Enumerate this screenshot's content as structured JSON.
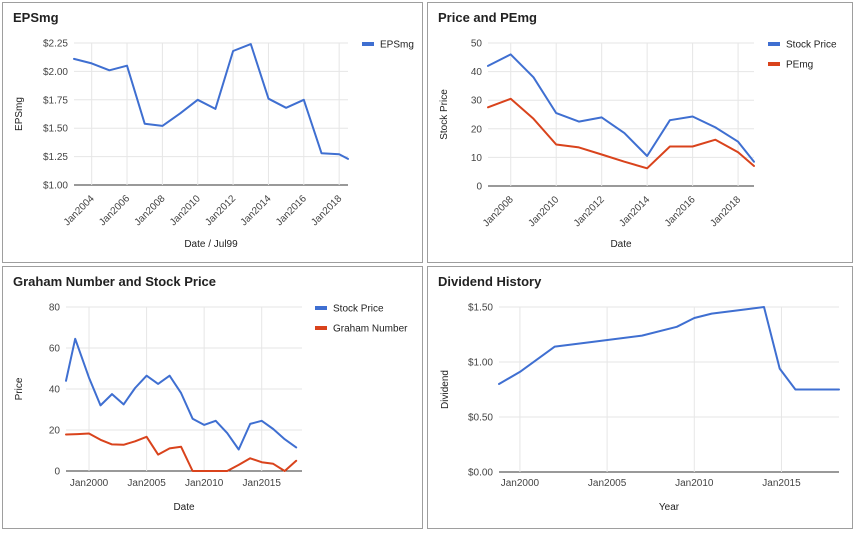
{
  "chart_data": [
    {
      "type": "line",
      "title": "EPSmg",
      "xlabel": "Date / Jul99",
      "ylabel": "EPSmg",
      "x_ticks": [
        "Jan2004",
        "Jan2006",
        "Jan2008",
        "Jan2010",
        "Jan2012",
        "Jan2014",
        "Jan2016",
        "Jan2018"
      ],
      "y_ticks": [
        "$1.00",
        "$1.25",
        "$1.50",
        "$1.75",
        "$2.00",
        "$2.25"
      ],
      "ylim": [
        1.0,
        2.25
      ],
      "xlim": [
        2003,
        2018.5
      ],
      "legend_position": "right",
      "series": [
        {
          "name": "EPSmg",
          "color": "#3f6fd1",
          "points": [
            [
              2003,
              2.11
            ],
            [
              2004,
              2.07
            ],
            [
              2005,
              2.01
            ],
            [
              2006,
              2.05
            ],
            [
              2007,
              1.54
            ],
            [
              2008,
              1.52
            ],
            [
              2009,
              1.63
            ],
            [
              2010,
              1.75
            ],
            [
              2011,
              1.67
            ],
            [
              2012,
              2.18
            ],
            [
              2013,
              2.24
            ],
            [
              2014,
              1.76
            ],
            [
              2015,
              1.68
            ],
            [
              2016,
              1.75
            ],
            [
              2017,
              1.28
            ],
            [
              2018,
              1.27
            ],
            [
              2018.5,
              1.23
            ]
          ]
        }
      ]
    },
    {
      "type": "line",
      "title": "Price and PEmg",
      "xlabel": "Date",
      "ylabel": "Stock Price",
      "x_ticks": [
        "Jan2008",
        "Jan2010",
        "Jan2012",
        "Jan2014",
        "Jan2016",
        "Jan2018"
      ],
      "y_ticks": [
        "0",
        "10",
        "20",
        "30",
        "40",
        "50"
      ],
      "ylim": [
        0,
        50
      ],
      "xlim": [
        2007,
        2018.7
      ],
      "legend_position": "right",
      "series": [
        {
          "name": "Stock Price",
          "color": "#3f6fd1",
          "points": [
            [
              2007,
              42
            ],
            [
              2008,
              46
            ],
            [
              2009,
              38
            ],
            [
              2010,
              25.5
            ],
            [
              2011,
              22.5
            ],
            [
              2012,
              24
            ],
            [
              2013,
              18.5
            ],
            [
              2014,
              10.5
            ],
            [
              2015,
              23
            ],
            [
              2016,
              24.3
            ],
            [
              2017,
              20.5
            ],
            [
              2018,
              15.5
            ],
            [
              2018.7,
              8.5
            ]
          ]
        },
        {
          "name": "PEmg",
          "color": "#d9431c",
          "points": [
            [
              2007,
              27.5
            ],
            [
              2008,
              30.5
            ],
            [
              2009,
              23.5
            ],
            [
              2010,
              14.5
            ],
            [
              2011,
              13.5
            ],
            [
              2012,
              11
            ],
            [
              2013,
              8.5
            ],
            [
              2014,
              6.2
            ],
            [
              2015,
              13.8
            ],
            [
              2016,
              13.8
            ],
            [
              2017,
              16.2
            ],
            [
              2018,
              11.8
            ],
            [
              2018.7,
              7
            ]
          ]
        }
      ]
    },
    {
      "type": "line",
      "title": "Graham Number and Stock Price",
      "xlabel": "Date",
      "ylabel": "Price",
      "x_ticks": [
        "Jan2000",
        "Jan2005",
        "Jan2010",
        "Jan2015"
      ],
      "y_ticks": [
        "0",
        "20",
        "40",
        "60",
        "80"
      ],
      "ylim": [
        0,
        80
      ],
      "xlim": [
        1998,
        2018.5
      ],
      "legend_position": "right",
      "series": [
        {
          "name": "Stock Price",
          "color": "#3f6fd1",
          "points": [
            [
              1998,
              44
            ],
            [
              1998.8,
              64.5
            ],
            [
              2000,
              45.5
            ],
            [
              2001,
              32
            ],
            [
              2002,
              37.5
            ],
            [
              2003,
              32.5
            ],
            [
              2004,
              40.5
            ],
            [
              2005,
              46.5
            ],
            [
              2006,
              42.5
            ],
            [
              2007,
              46.5
            ],
            [
              2008,
              38
            ],
            [
              2009,
              25.5
            ],
            [
              2010,
              22.5
            ],
            [
              2011,
              24.5
            ],
            [
              2012,
              18.5
            ],
            [
              2013,
              10.5
            ],
            [
              2014,
              23
            ],
            [
              2015,
              24.5
            ],
            [
              2016,
              20.5
            ],
            [
              2017,
              15.5
            ],
            [
              2018,
              11.5
            ]
          ]
        },
        {
          "name": "Graham Number",
          "color": "#d9431c",
          "points": [
            [
              1998,
              17.8
            ],
            [
              1999,
              18
            ],
            [
              2000,
              18.3
            ],
            [
              2001,
              15.2
            ],
            [
              2002,
              13
            ],
            [
              2003,
              12.8
            ],
            [
              2004,
              14.5
            ],
            [
              2005,
              16.7
            ],
            [
              2006,
              8
            ],
            [
              2007,
              11
            ],
            [
              2008,
              11.8
            ],
            [
              2009,
              0
            ],
            [
              2010,
              0
            ],
            [
              2011,
              0
            ],
            [
              2012,
              0
            ],
            [
              2013,
              3
            ],
            [
              2014,
              6.2
            ],
            [
              2015,
              4.3
            ],
            [
              2016,
              3.5
            ],
            [
              2017,
              0
            ],
            [
              2018,
              5
            ]
          ]
        }
      ]
    },
    {
      "type": "line",
      "title": "Dividend History",
      "xlabel": "Year",
      "ylabel": "Dividend",
      "x_ticks": [
        "Jan2000",
        "Jan2005",
        "Jan2010",
        "Jan2015"
      ],
      "y_ticks": [
        "$0.00",
        "$0.50",
        "$1.00",
        "$1.50"
      ],
      "ylim": [
        0,
        1.5
      ],
      "xlim": [
        1998.8,
        2018.3
      ],
      "legend_position": "none",
      "series": [
        {
          "name": "",
          "color": "#3f6fd1",
          "points": [
            [
              1998.8,
              0.8
            ],
            [
              2000,
              0.91
            ],
            [
              2002,
              1.14
            ],
            [
              2004,
              1.18
            ],
            [
              2007,
              1.24
            ],
            [
              2009,
              1.32
            ],
            [
              2010,
              1.4
            ],
            [
              2011,
              1.44
            ],
            [
              2013,
              1.48
            ],
            [
              2014,
              1.5
            ],
            [
              2014.9,
              0.94
            ],
            [
              2015.8,
              0.75
            ],
            [
              2018.3,
              0.75
            ]
          ]
        }
      ]
    }
  ]
}
